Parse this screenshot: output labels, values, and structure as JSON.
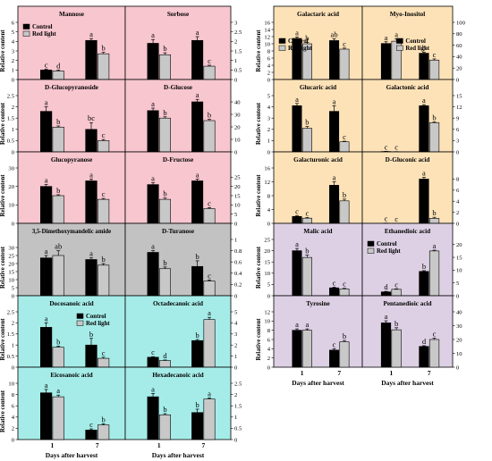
{
  "figure": {
    "ylabel": "Relative content",
    "xlabel": "Days after harvest",
    "x_ticks": [
      "1",
      "7"
    ],
    "legend": {
      "control": "Control",
      "red_light": "Red light"
    },
    "colors": {
      "control": "#000000",
      "red_light": "#c8c8c8",
      "pink": "#f7c6cf",
      "orange": "#fde2b8",
      "gray": "#c2c2c2",
      "cyan": "#a5ece8",
      "purple": "#ddd0e4"
    }
  },
  "chart_data": [
    {
      "type": "bar",
      "title": "Mannose",
      "categories": [
        "1",
        "7"
      ],
      "series": [
        {
          "name": "Control",
          "values": [
            1.0,
            4.1
          ]
        },
        {
          "name": "Red light",
          "values": [
            0.9,
            2.7
          ]
        }
      ],
      "letters": [
        [
          "c",
          "a"
        ],
        [
          "d",
          "b"
        ]
      ],
      "errors": [
        [
          0.1,
          0.2
        ],
        [
          0.1,
          0.15
        ]
      ],
      "ylim": [
        0,
        6
      ],
      "yticks": [
        0,
        1,
        2,
        3,
        4,
        5,
        6
      ],
      "legend": "top-left"
    },
    {
      "type": "bar",
      "title": "Sorbose",
      "categories": [
        "1",
        "7"
      ],
      "series": [
        {
          "name": "Control",
          "values": [
            1.9,
            2.05
          ]
        },
        {
          "name": "Red light",
          "values": [
            1.3,
            0.7
          ]
        }
      ],
      "letters": [
        [
          "a",
          "a"
        ],
        [
          "b",
          "c"
        ]
      ],
      "errors": [
        [
          0.2,
          0.2
        ],
        [
          0.1,
          0.05
        ]
      ],
      "ylim": [
        0,
        3
      ],
      "yticks": [
        0,
        0.5,
        1.0,
        1.5,
        2.0,
        2.5,
        3.0
      ]
    },
    {
      "type": "bar",
      "title": "Galactaric acid",
      "categories": [
        "1",
        "7"
      ],
      "series": [
        {
          "name": "Control",
          "values": [
            11.5,
            10.9
          ]
        },
        {
          "name": "Red light",
          "values": [
            10.0,
            8.5
          ]
        }
      ],
      "letters": [
        [
          "a",
          "ab"
        ],
        [
          "b",
          "c"
        ]
      ],
      "errors": [
        [
          0.4,
          0.5
        ],
        [
          0.4,
          0.3
        ]
      ],
      "ylim": [
        0,
        16
      ],
      "yticks": [
        0,
        2,
        4,
        6,
        8,
        10,
        12,
        14,
        16
      ],
      "legend": "bottom-left"
    },
    {
      "type": "bar",
      "title": "Myo-Inositol",
      "categories": [
        "1",
        "7"
      ],
      "series": [
        {
          "name": "Control",
          "values": [
            63,
            46
          ]
        },
        {
          "name": "Red light",
          "values": [
            67,
            34
          ]
        }
      ],
      "letters": [
        [
          "a",
          "b"
        ],
        [
          "a",
          "c"
        ]
      ],
      "errors": [
        [
          3,
          2
        ],
        [
          4,
          2
        ]
      ],
      "ylim": [
        0,
        100
      ],
      "yticks": [
        0,
        20,
        40,
        60,
        80,
        100
      ],
      "legend": "bottom-right"
    },
    {
      "type": "bar",
      "title": "D-Glucopyranoside",
      "categories": [
        "1",
        "7"
      ],
      "series": [
        {
          "name": "Control",
          "values": [
            1.8,
            1.0
          ]
        },
        {
          "name": "Red light",
          "values": [
            1.1,
            0.5
          ]
        }
      ],
      "letters": [
        [
          "a",
          "bc"
        ],
        [
          "b",
          "c"
        ]
      ],
      "errors": [
        [
          0.2,
          0.3
        ],
        [
          0.05,
          0.05
        ]
      ],
      "ylim": [
        0,
        2.5
      ],
      "yticks": [
        0,
        0.5,
        1.0,
        1.5,
        2.0,
        2.5
      ]
    },
    {
      "type": "bar",
      "title": "D-Glucose",
      "categories": [
        "1",
        "7"
      ],
      "series": [
        {
          "name": "Control",
          "values": [
            33,
            40
          ]
        },
        {
          "name": "Red light",
          "values": [
            27,
            25
          ]
        }
      ],
      "letters": [
        [
          "a",
          "a"
        ],
        [
          "b",
          "b"
        ]
      ],
      "errors": [
        [
          2,
          2
        ],
        [
          1,
          1
        ]
      ],
      "ylim": [
        0,
        45
      ],
      "yticks": [
        0,
        10,
        20,
        30,
        40
      ]
    },
    {
      "type": "bar",
      "title": "Glucaric acid",
      "categories": [
        "1",
        "7"
      ],
      "series": [
        {
          "name": "Control",
          "values": [
            4.1,
            3.6
          ]
        },
        {
          "name": "Red light",
          "values": [
            2.1,
            0.9
          ]
        }
      ],
      "letters": [
        [
          "a",
          "a"
        ],
        [
          "b",
          "c"
        ]
      ],
      "errors": [
        [
          0.2,
          0.5
        ],
        [
          0.15,
          0.05
        ]
      ],
      "ylim": [
        0,
        5
      ],
      "yticks": [
        0,
        1,
        2,
        3,
        4,
        5
      ]
    },
    {
      "type": "bar",
      "title": "Galactonic acid",
      "categories": [
        "1",
        "7"
      ],
      "series": [
        {
          "name": "Control",
          "values": [
            0.1,
            12.3
          ]
        },
        {
          "name": "Red light",
          "values": [
            0.05,
            7.8
          ]
        }
      ],
      "letters": [
        [
          "c",
          "a"
        ],
        [
          "c",
          "b"
        ]
      ],
      "errors": [
        [
          0.05,
          0.3
        ],
        [
          0.02,
          0.2
        ]
      ],
      "ylim": [
        0,
        15
      ],
      "yticks": [
        0,
        3,
        6,
        9,
        12,
        15
      ]
    },
    {
      "type": "bar",
      "title": "Glucopyranose",
      "categories": [
        "1",
        "7"
      ],
      "series": [
        {
          "name": "Control",
          "values": [
            20,
            23
          ]
        },
        {
          "name": "Red light",
          "values": [
            15,
            13
          ]
        }
      ],
      "letters": [
        [
          "a",
          "a"
        ],
        [
          "b",
          "c"
        ]
      ],
      "errors": [
        [
          1,
          1
        ],
        [
          0.5,
          0.5
        ]
      ],
      "ylim": [
        0,
        30
      ],
      "yticks": [
        0,
        10,
        20,
        30
      ]
    },
    {
      "type": "bar",
      "title": "D-Fructose",
      "categories": [
        "1",
        "7"
      ],
      "series": [
        {
          "name": "Control",
          "values": [
            21,
            23
          ]
        },
        {
          "name": "Red light",
          "values": [
            13,
            8
          ]
        }
      ],
      "letters": [
        [
          "a",
          "a"
        ],
        [
          "b",
          "c"
        ]
      ],
      "errors": [
        [
          1,
          1
        ],
        [
          0.7,
          0.5
        ]
      ],
      "ylim": [
        0,
        30
      ],
      "yticks": [
        0,
        5,
        10,
        15,
        20,
        25
      ]
    },
    {
      "type": "bar",
      "title": "Galacturonic acid",
      "categories": [
        "1",
        "7"
      ],
      "series": [
        {
          "name": "Control",
          "values": [
            2.0,
            11.0
          ]
        },
        {
          "name": "Red light",
          "values": [
            1.5,
            6.5
          ]
        }
      ],
      "letters": [
        [
          "c",
          "a"
        ],
        [
          "c",
          "b"
        ]
      ],
      "errors": [
        [
          0.2,
          1.0
        ],
        [
          0.2,
          0.5
        ]
      ],
      "ylim": [
        0,
        16
      ],
      "yticks": [
        0,
        4,
        8,
        12,
        16
      ]
    },
    {
      "type": "bar",
      "title": "D-Gluconic acid",
      "categories": [
        "1",
        "7"
      ],
      "series": [
        {
          "name": "Control",
          "values": [
            0.03,
            8.0
          ]
        },
        {
          "name": "Red light",
          "values": [
            0.02,
            0.9
          ]
        }
      ],
      "letters": [
        [
          "c",
          "a"
        ],
        [
          "c",
          "b"
        ]
      ],
      "errors": [
        [
          0.02,
          0.3
        ],
        [
          0.01,
          0.2
        ]
      ],
      "ylim": [
        0,
        10
      ],
      "yticks": [
        0,
        2,
        4,
        6,
        8
      ]
    },
    {
      "type": "bar",
      "title": "3,5-Dimethoxymandelic amide",
      "categories": [
        "1",
        "7"
      ],
      "series": [
        {
          "name": "Control",
          "values": [
            23.5,
            22.5
          ]
        },
        {
          "name": "Red light",
          "values": [
            25,
            19
          ]
        }
      ],
      "letters": [
        [
          "a",
          "a"
        ],
        [
          "ab",
          "b"
        ]
      ],
      "errors": [
        [
          1.5,
          1
        ],
        [
          3,
          1
        ]
      ],
      "ylim": [
        0,
        35
      ],
      "yticks": [
        0,
        5,
        10,
        15,
        20,
        25,
        30
      ]
    },
    {
      "type": "bar",
      "title": "D-Turanose",
      "categories": [
        "1",
        "7"
      ],
      "series": [
        {
          "name": "Control",
          "values": [
            0.77,
            0.52
          ]
        },
        {
          "name": "Red light",
          "values": [
            0.48,
            0.26
          ]
        }
      ],
      "letters": [
        [
          "a",
          "b"
        ],
        [
          "b",
          "c"
        ]
      ],
      "errors": [
        [
          0.03,
          0.1
        ],
        [
          0.03,
          0.02
        ]
      ],
      "ylim": [
        0,
        1.0
      ],
      "yticks": [
        0,
        0.2,
        0.4,
        0.6,
        0.8,
        1.0
      ]
    },
    {
      "type": "bar",
      "title": "Malic acid",
      "categories": [
        "1",
        "7"
      ],
      "series": [
        {
          "name": "Control",
          "values": [
            20,
            3.5
          ]
        },
        {
          "name": "Red light",
          "values": [
            17,
            3.0
          ]
        }
      ],
      "letters": [
        [
          "a",
          "c"
        ],
        [
          "b",
          "c"
        ]
      ],
      "errors": [
        [
          1,
          0.3
        ],
        [
          1,
          0.3
        ]
      ],
      "ylim": [
        0,
        25
      ],
      "yticks": [
        0,
        5,
        10,
        15,
        20,
        25
      ]
    },
    {
      "type": "bar",
      "title": "Ethanedioic acid",
      "categories": [
        "1",
        "7"
      ],
      "series": [
        {
          "name": "Control",
          "values": [
            1.5,
            9.5
          ]
        },
        {
          "name": "Red light",
          "values": [
            2.5,
            17.5
          ]
        }
      ],
      "letters": [
        [
          "d",
          "b"
        ],
        [
          "c",
          "a"
        ]
      ],
      "errors": [
        [
          0.2,
          0.3
        ],
        [
          0.2,
          0.3
        ]
      ],
      "ylim": [
        0,
        22
      ],
      "yticks": [
        0,
        5,
        10,
        15,
        20
      ],
      "legend": "top-left"
    },
    {
      "type": "bar",
      "title": "Docosanoic acid",
      "categories": [
        "1",
        "7"
      ],
      "series": [
        {
          "name": "Control",
          "values": [
            1.8,
            1.0
          ]
        },
        {
          "name": "Red light",
          "values": [
            0.9,
            0.4
          ]
        }
      ],
      "letters": [
        [
          "a",
          "b"
        ],
        [
          "b",
          "c"
        ]
      ],
      "errors": [
        [
          0.2,
          0.3
        ],
        [
          0.05,
          0.05
        ]
      ],
      "ylim": [
        0,
        2.5
      ],
      "yticks": [
        0,
        0.5,
        1.0,
        1.5,
        2.0,
        2.5
      ],
      "legend": "top-right"
    },
    {
      "type": "bar",
      "title": "Octadecanoic acid",
      "categories": [
        "1",
        "7"
      ],
      "series": [
        {
          "name": "Control",
          "values": [
            0.9,
            2.4
          ]
        },
        {
          "name": "Red light",
          "values": [
            0.6,
            4.3
          ]
        }
      ],
      "letters": [
        [
          "c",
          "b"
        ],
        [
          "d",
          "a"
        ]
      ],
      "errors": [
        [
          0.05,
          0.1
        ],
        [
          0.05,
          0.2
        ]
      ],
      "ylim": [
        0,
        5
      ],
      "yticks": [
        0,
        1,
        2,
        3,
        4,
        5
      ]
    },
    {
      "type": "bar",
      "title": "Tyrosine",
      "categories": [
        "1",
        "7"
      ],
      "series": [
        {
          "name": "Control",
          "values": [
            8.0,
            3.7
          ]
        },
        {
          "name": "Red light",
          "values": [
            8.0,
            5.5
          ]
        }
      ],
      "letters": [
        [
          "a",
          "c"
        ],
        [
          "a",
          "b"
        ]
      ],
      "errors": [
        [
          0.3,
          0.3
        ],
        [
          0.3,
          0.3
        ]
      ],
      "ylim": [
        0,
        12
      ],
      "yticks": [
        0,
        2,
        4,
        6,
        8,
        10,
        12
      ]
    },
    {
      "type": "bar",
      "title": "Pentanedioic acid",
      "categories": [
        "1",
        "7"
      ],
      "series": [
        {
          "name": "Control",
          "values": [
            32,
            15
          ]
        },
        {
          "name": "Red light",
          "values": [
            27,
            20
          ]
        }
      ],
      "letters": [
        [
          "a",
          "d"
        ],
        [
          "b",
          "c"
        ]
      ],
      "errors": [
        [
          1.5,
          0.5
        ],
        [
          1.5,
          1
        ]
      ],
      "ylim": [
        0,
        40
      ],
      "yticks": [
        0,
        10,
        20,
        30,
        40
      ]
    },
    {
      "type": "bar",
      "title": "Eicosanoic acid",
      "categories": [
        "1",
        "7"
      ],
      "series": [
        {
          "name": "Control",
          "values": [
            8.3,
            1.7
          ]
        },
        {
          "name": "Red light",
          "values": [
            7.6,
            2.6
          ]
        }
      ],
      "letters": [
        [
          "a",
          "c"
        ],
        [
          "a",
          "b"
        ]
      ],
      "errors": [
        [
          0.6,
          0.2
        ],
        [
          0.3,
          0.2
        ]
      ],
      "ylim": [
        0,
        10
      ],
      "yticks": [
        0,
        2,
        4,
        6,
        8,
        10
      ]
    },
    {
      "type": "bar",
      "title": "Hexadecanoic acid",
      "categories": [
        "1",
        "7"
      ],
      "series": [
        {
          "name": "Control",
          "values": [
            1.9,
            1.2
          ]
        },
        {
          "name": "Red light",
          "values": [
            1.1,
            1.8
          ]
        }
      ],
      "letters": [
        [
          "a",
          "b"
        ],
        [
          "b",
          "a"
        ]
      ],
      "errors": [
        [
          0.15,
          0.15
        ],
        [
          0.05,
          0.05
        ]
      ],
      "ylim": [
        0,
        2.5
      ],
      "yticks": [
        0,
        0.5,
        1.0,
        1.5,
        2.0,
        2.5
      ]
    }
  ]
}
